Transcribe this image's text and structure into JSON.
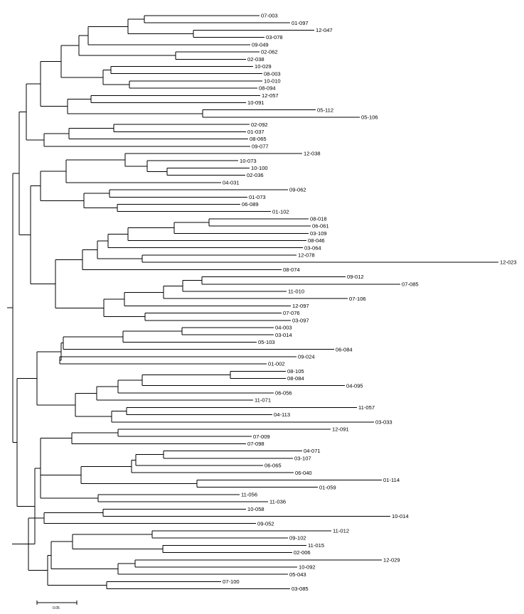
{
  "tree": {
    "leaves": [
      "07-003",
      "01-097",
      "12-047",
      "03-078",
      "09-049",
      "02-062",
      "02-038",
      "10-029",
      "08-003",
      "10-010",
      "08-094",
      "12-057",
      "10-091",
      "05-112",
      "05-106",
      "02-092",
      "01-037",
      "08-065",
      "09-077",
      "12-038",
      "10-073",
      "10-100",
      "02-036",
      "04-031",
      "09-062",
      "01-073",
      "06-089",
      "01-102",
      "08-018",
      "06-061",
      "03-109",
      "08-046",
      "03-064",
      "12-078",
      "12-023",
      "08-074",
      "09-012",
      "07-085",
      "11-010",
      "07-106",
      "12-097",
      "07-076",
      "03-097",
      "04-003",
      "03-014",
      "05-103",
      "06-084",
      "09-024",
      "01-002",
      "08-105",
      "08-084",
      "04-095",
      "06-056",
      "11-071",
      "11-057",
      "04-113",
      "03-033",
      "12-091",
      "07-009",
      "07-098",
      "04-071",
      "03-107",
      "06-065",
      "06-040",
      "01-114",
      "01-059",
      "11-056",
      "11-036",
      "10-058",
      "10-014",
      "09-052",
      "11-012",
      "09-102",
      "11-015",
      "02-006",
      "12-029",
      "10-092",
      "05-043",
      "07-100",
      "03-085"
    ]
  },
  "scale_bar": {
    "label": "0.05"
  }
}
